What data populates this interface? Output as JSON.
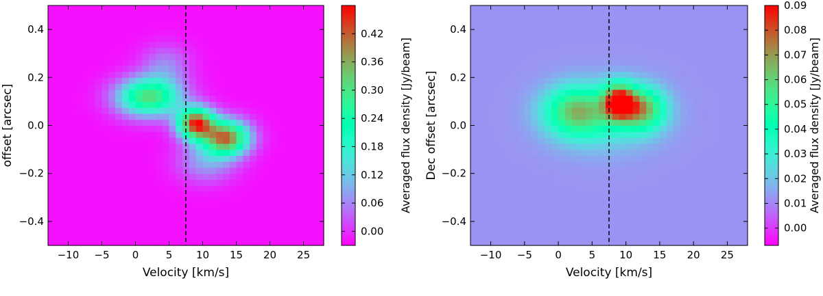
{
  "chart_data": [
    {
      "type": "heatmap",
      "panel": "left",
      "title": "",
      "xlabel": "Velocity [km/s]",
      "ylabel": "offset [arcsec]",
      "xlim": [
        -13,
        28
      ],
      "ylim": [
        -0.5,
        0.5
      ],
      "x_ticks": [
        -10,
        -5,
        0,
        5,
        10,
        15,
        20,
        25
      ],
      "x_tick_labels": [
        "−10",
        "−5",
        "0",
        "5",
        "10",
        "15",
        "20",
        "25"
      ],
      "y_ticks": [
        -0.4,
        -0.2,
        0.0,
        0.2,
        0.4
      ],
      "y_tick_labels": [
        "−0.4",
        "−0.2",
        "0.0",
        "0.2",
        "0.4"
      ],
      "reference_line_x": 7.5,
      "colorbar": {
        "label": "Averaged flux density [Jy/beam]",
        "range": [
          -0.03,
          0.48
        ],
        "ticks": [
          0.0,
          0.06,
          0.12,
          0.18,
          0.24,
          0.3,
          0.36,
          0.42
        ],
        "tick_labels": [
          "0.00",
          "0.06",
          "0.12",
          "0.18",
          "0.24",
          "0.30",
          "0.36",
          "0.42"
        ],
        "colormap": "rainbow"
      },
      "background_value": -0.02,
      "components": [
        {
          "velocity": 2.0,
          "offset": 0.12,
          "peak": 0.33,
          "sigma_velocity": 3.3,
          "sigma_offset": 0.055
        },
        {
          "velocity": 9.0,
          "offset": 0.01,
          "peak": 0.46,
          "sigma_velocity": 1.9,
          "sigma_offset": 0.045
        },
        {
          "velocity": 13.5,
          "offset": -0.05,
          "peak": 0.42,
          "sigma_velocity": 2.4,
          "sigma_offset": 0.05
        },
        {
          "velocity": 10.5,
          "offset": -0.15,
          "peak": 0.1,
          "sigma_velocity": 3.0,
          "sigma_offset": 0.06
        },
        {
          "velocity": 4.5,
          "offset": 0.25,
          "peak": 0.08,
          "sigma_velocity": 2.5,
          "sigma_offset": 0.06
        }
      ]
    },
    {
      "type": "heatmap",
      "panel": "right",
      "title": "",
      "xlabel": "Velocity [km/s]",
      "ylabel": "Dec offset [arcsec]",
      "xlim": [
        -13,
        28
      ],
      "ylim": [
        -0.5,
        0.5
      ],
      "x_ticks": [
        -10,
        -5,
        0,
        5,
        10,
        15,
        20,
        25
      ],
      "x_tick_labels": [
        "−10",
        "−5",
        "0",
        "5",
        "10",
        "15",
        "20",
        "25"
      ],
      "y_ticks": [
        -0.4,
        -0.2,
        0.0,
        0.2,
        0.4
      ],
      "y_tick_labels": [
        "−0.4",
        "−0.2",
        "0.0",
        "0.2",
        "0.4"
      ],
      "reference_line_x": 7.5,
      "colorbar": {
        "label": "Averaged flux density [Jy/beam]",
        "range": [
          -0.007,
          0.09
        ],
        "ticks": [
          0.0,
          0.01,
          0.02,
          0.03,
          0.04,
          0.05,
          0.06,
          0.07,
          0.08,
          0.09
        ],
        "tick_labels": [
          "0.00",
          "0.01",
          "0.02",
          "0.03",
          "0.04",
          "0.05",
          "0.06",
          "0.07",
          "0.08",
          "0.09"
        ],
        "colormap": "rainbow"
      },
      "background_value": 0.012,
      "components": [
        {
          "velocity": 2.5,
          "offset": 0.06,
          "peak": 0.042,
          "sigma_velocity": 3.2,
          "sigma_offset": 0.07
        },
        {
          "velocity": 9.0,
          "offset": 0.1,
          "peak": 0.072,
          "sigma_velocity": 1.6,
          "sigma_offset": 0.05
        },
        {
          "velocity": 12.5,
          "offset": 0.07,
          "peak": 0.048,
          "sigma_velocity": 2.3,
          "sigma_offset": 0.06
        },
        {
          "velocity": 7.0,
          "offset": 0.04,
          "peak": 0.02,
          "sigma_velocity": 5.0,
          "sigma_offset": 0.09
        }
      ]
    }
  ]
}
